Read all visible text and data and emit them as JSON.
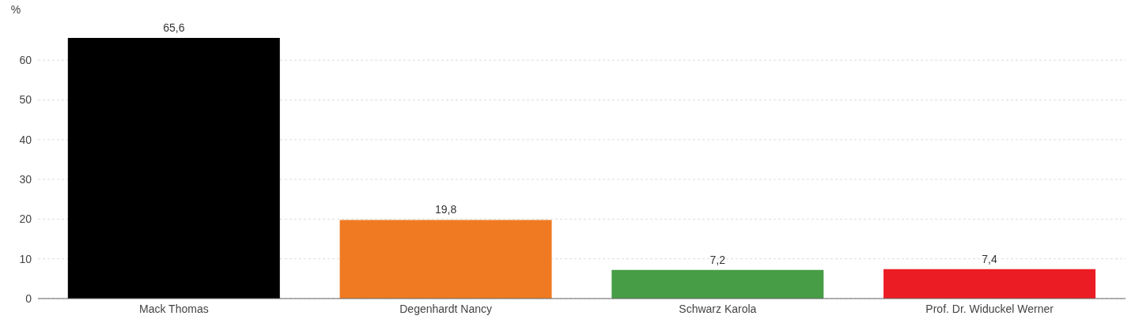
{
  "chart_data": {
    "type": "bar",
    "ylabel": "%",
    "categories": [
      "Mack Thomas",
      "Degenhardt Nancy",
      "Schwarz Karola",
      "Prof. Dr. Widuckel Werner"
    ],
    "values": [
      65.6,
      19.8,
      7.2,
      7.4
    ],
    "value_labels": [
      "65,6",
      "19,8",
      "7,2",
      "7,4"
    ],
    "colors": [
      "#000000",
      "#f07a22",
      "#469d45",
      "#ec1c24"
    ],
    "ylim": [
      0,
      65.6
    ],
    "yticks": [
      0,
      10,
      20,
      30,
      40,
      50,
      60
    ],
    "grid": "y",
    "legend": false
  }
}
